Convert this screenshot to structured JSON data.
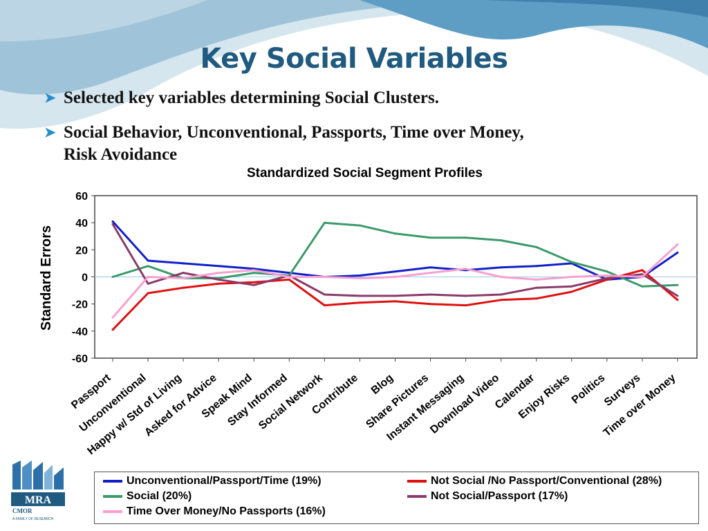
{
  "slide": {
    "title": "Key Social Variables",
    "bullets": [
      "Selected key variables determining Social Clusters.",
      "Social Behavior, Unconventional, Passports, Time over Money,",
      "Risk Avoidance"
    ],
    "logo_text": "MRA",
    "logo_sub": "CMOR",
    "logo_sub2": "A FAMILY OF RESEARCH",
    "colors": {
      "title": "#1f5a80",
      "bullet_arrow": "#2a8fc8",
      "swoosh": "#5e9ec4"
    }
  },
  "chart_data": {
    "type": "line",
    "title": "Standardized Social Segment Profiles",
    "xlabel": "",
    "ylabel": "Standard Errors",
    "ylim": [
      -60,
      60
    ],
    "yticks": [
      60,
      40,
      20,
      0,
      -20,
      -40,
      -60
    ],
    "grid": false,
    "legend_position": "bottom",
    "categories": [
      "Passport",
      "Unconventional",
      "Happy w/ Std of Living",
      "Asked for Advice",
      "Speak Mind",
      "Stay Informed",
      "Social Network",
      "Contribute",
      "Blog",
      "Share Pictures",
      "Instant Messaging",
      "Download Video",
      "Calendar",
      "Enjoy Risks",
      "Politics",
      "Surveys",
      "Time over Money"
    ],
    "series": [
      {
        "name": "Unconventional/Passport/Time (19%)",
        "color": "#1020c8",
        "values": [
          41,
          12,
          10,
          8,
          6,
          3,
          0,
          1,
          4,
          7,
          5,
          7,
          8,
          10,
          -2,
          0,
          18
        ]
      },
      {
        "name": "Not Social /No Passport/Conventional (28%)",
        "color": "#e01010",
        "values": [
          -39,
          -12,
          -8,
          -5,
          -4,
          -2,
          -21,
          -19,
          -18,
          -20,
          -21,
          -17,
          -16,
          -11,
          -2,
          5,
          -17
        ]
      },
      {
        "name": "Social (20%)",
        "color": "#3a9a6a",
        "values": [
          0,
          8,
          -1,
          -1,
          3,
          1,
          40,
          38,
          32,
          29,
          29,
          27,
          22,
          11,
          4,
          -7,
          -6
        ]
      },
      {
        "name": "Not Social/Passport (17%)",
        "color": "#8a3a6a",
        "values": [
          39,
          -5,
          3,
          -2,
          -6,
          1,
          -13,
          -14,
          -14,
          -13,
          -14,
          -13,
          -8,
          -7,
          -1,
          2,
          -14
        ]
      },
      {
        "name": "Time Over Money/No Passports (16%)",
        "color": "#f7a0d0",
        "values": [
          -30,
          0,
          -1,
          3,
          5,
          0,
          0,
          -1,
          0,
          3,
          6,
          0,
          -2,
          0,
          1,
          0,
          24
        ]
      }
    ]
  }
}
